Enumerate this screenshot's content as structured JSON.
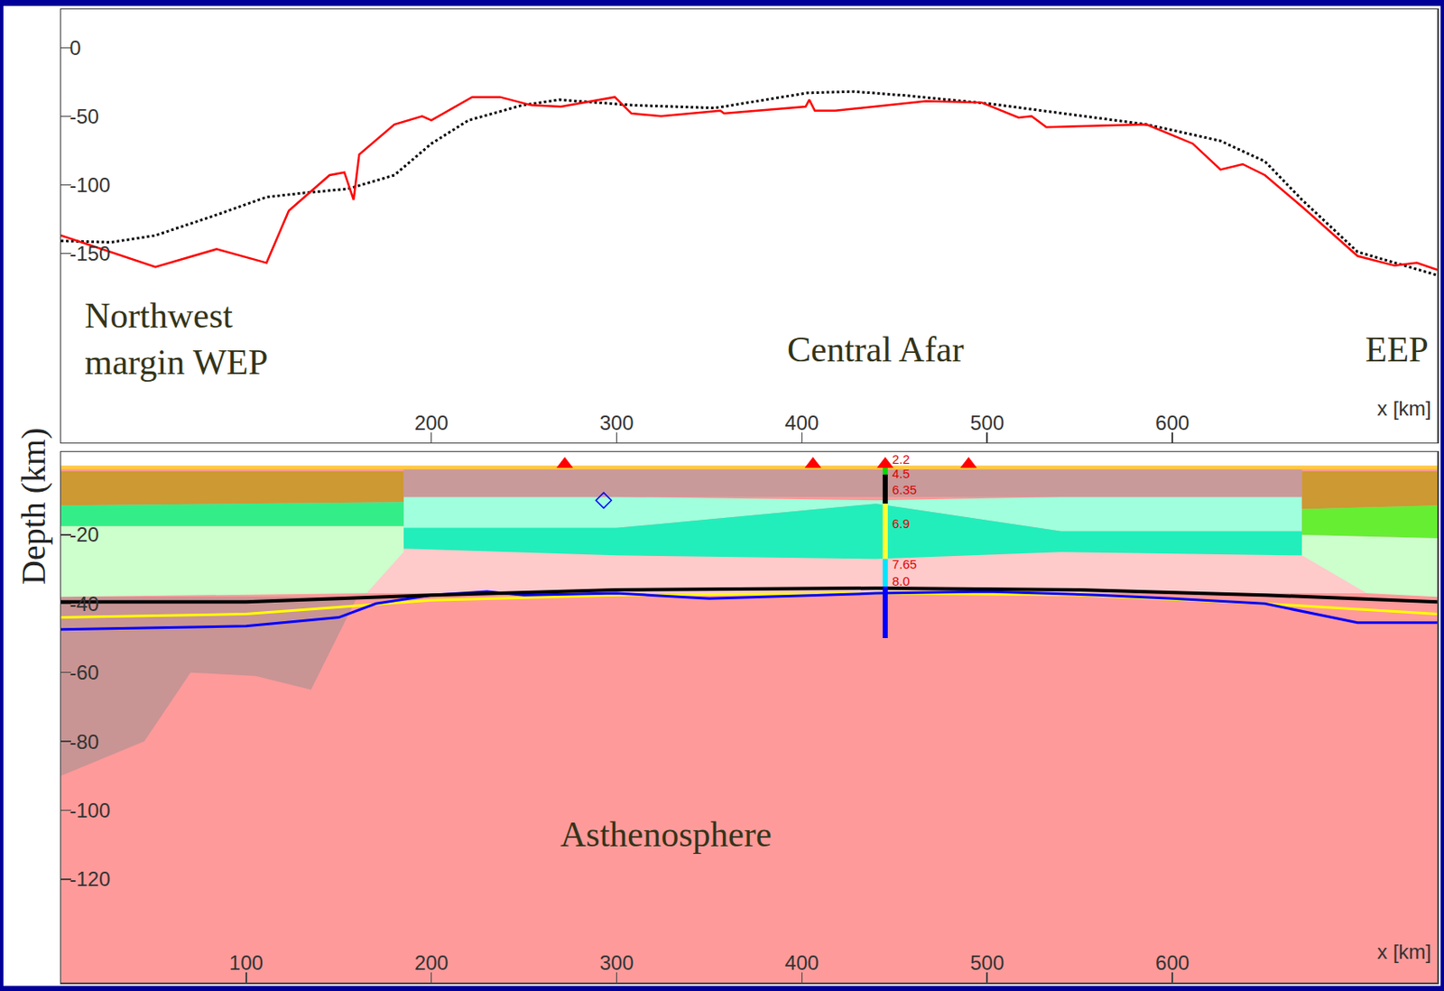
{
  "chart_data": [
    {
      "type": "line",
      "xlabel": "x [km]",
      "xlim": [
        0,
        743
      ],
      "xticks": [
        200,
        300,
        400,
        500,
        600
      ],
      "ylim": [
        -288,
        28
      ],
      "yticks": [
        0,
        -50,
        -100,
        -150
      ],
      "grid": false,
      "annotations": [
        "Northwest margin WEP",
        "Central Afar",
        "EEP"
      ],
      "series": [
        {
          "color": "#000000",
          "line_style": "dotted",
          "x": [
            0,
            27,
            51,
            84,
            111,
            131,
            155,
            180,
            200,
            220,
            249,
            269,
            309,
            353,
            403,
            428,
            457,
            502,
            586,
            626,
            650,
            670,
            700,
            725,
            743
          ],
          "values": [
            -141,
            -142,
            -137,
            -122,
            -109,
            -106,
            -103,
            -93,
            -70,
            -53,
            -42,
            -38,
            -42,
            -44,
            -33,
            -32,
            -35,
            -41,
            -56,
            -68,
            -83,
            -111,
            -149,
            -159,
            -166
          ]
        },
        {
          "color": "#ff0000",
          "line_style": "solid",
          "x": [
            0,
            51,
            84,
            111,
            123,
            145,
            153,
            158,
            161,
            180,
            195,
            200,
            222,
            237,
            254,
            270,
            299,
            308,
            324,
            356,
            358,
            402,
            404,
            407,
            418,
            462,
            467,
            497,
            517,
            524,
            532,
            586,
            611,
            626,
            638,
            650,
            670,
            700,
            720,
            732,
            743
          ],
          "values": [
            -137,
            -160,
            -147,
            -157,
            -119,
            -93,
            -91,
            -111,
            -78,
            -56,
            -50,
            -53,
            -36,
            -36,
            -42,
            -43,
            -36,
            -48,
            -50,
            -46,
            -48,
            -43,
            -38,
            -46,
            -46,
            -40,
            -39,
            -40,
            -51,
            -50,
            -58,
            -56,
            -70,
            -89,
            -85,
            -93,
            -116,
            -152,
            -159,
            -157,
            -162
          ]
        }
      ]
    },
    {
      "type": "area",
      "xlabel": "x [km]",
      "ylabel": "Depth (km)",
      "xlim": [
        0,
        743
      ],
      "xticks": [
        100,
        200,
        300,
        400,
        500,
        600
      ],
      "ylim": [
        -150,
        4
      ],
      "yticks": [
        -20,
        -40,
        -60,
        -80,
        -100,
        -120
      ],
      "grid": false,
      "annotations": [
        "Asthenosphere"
      ],
      "layers": [
        {
          "color": "#ff9a9a",
          "x": [
            0,
            743,
            743,
            0
          ],
          "y": [
            0,
            0,
            -150,
            -150
          ]
        },
        {
          "color": "#c99494",
          "x": [
            0,
            160,
            135,
            105,
            70,
            45,
            0
          ],
          "y": [
            -38,
            -38,
            -65,
            -61,
            -60,
            -80,
            -90
          ]
        },
        {
          "color": "#ffcaca",
          "x": [
            165,
            705,
            705,
            165
          ],
          "y": [
            -24,
            -24,
            -37,
            -37
          ]
        },
        {
          "color": "#a0ffdc",
          "x": [
            185,
            300,
            440,
            540,
            670,
            670,
            540,
            440,
            300,
            185
          ],
          "y": [
            -9,
            -9,
            -10,
            -9,
            -9,
            -19,
            -19,
            -11,
            -18,
            -18
          ]
        },
        {
          "color": "#22eebb",
          "x": [
            185,
            300,
            440,
            540,
            670,
            670,
            540,
            440,
            300,
            185
          ],
          "y": [
            -18,
            -18,
            -11,
            -19,
            -19,
            -26,
            -25,
            -27,
            -26,
            -24
          ]
        },
        {
          "color": "#c99a9a",
          "x": [
            185,
            670,
            670,
            185
          ],
          "y": [
            -1,
            -1,
            -9,
            -9
          ]
        },
        {
          "color": "#cc9933",
          "x": [
            0,
            185,
            185,
            0
          ],
          "y": [
            -1.5,
            -1.5,
            -10.5,
            -11.5
          ]
        },
        {
          "color": "#33ee88",
          "x": [
            0,
            185,
            185,
            0
          ],
          "y": [
            -11.5,
            -10.5,
            -17.5,
            -17.5
          ]
        },
        {
          "color": "#ccffcc",
          "x": [
            0,
            185,
            185,
            165,
            0
          ],
          "y": [
            -17.5,
            -17.5,
            -25,
            -37,
            -38
          ]
        },
        {
          "color": "#cc9933",
          "x": [
            670,
            743,
            743,
            670
          ],
          "y": [
            -1.5,
            -1.5,
            -11.5,
            -12.5
          ]
        },
        {
          "color": "#66ee33",
          "x": [
            670,
            743,
            743,
            670
          ],
          "y": [
            -12.5,
            -11.5,
            -21,
            -20
          ]
        },
        {
          "color": "#ccffcc",
          "x": [
            670,
            743,
            743,
            705,
            670
          ],
          "y": [
            -20,
            -21,
            -38,
            -37,
            -26
          ]
        },
        {
          "color": "#ffcc33",
          "x": [
            0,
            743,
            743,
            0
          ],
          "y": [
            0,
            0,
            -1,
            -1
          ]
        }
      ],
      "boundaries": [
        {
          "color": "#ffff00",
          "x": [
            0,
            100,
            200,
            300,
            440,
            550,
            650,
            743
          ],
          "values": [
            -44,
            -43,
            -39,
            -37.5,
            -37,
            -37.5,
            -40,
            -43
          ]
        },
        {
          "color": "#0000ff",
          "x": [
            0,
            50,
            100,
            150,
            170,
            200,
            230,
            250,
            300,
            350,
            440,
            500,
            560,
            600,
            650,
            700,
            743
          ],
          "values": [
            -47.5,
            -47,
            -46.5,
            -44,
            -40,
            -37.5,
            -36.5,
            -37.5,
            -37,
            -38.5,
            -37,
            -36.5,
            -37.5,
            -38.5,
            -40,
            -45.5,
            -45.5
          ]
        },
        {
          "color": "#000000",
          "x": [
            0,
            100,
            200,
            300,
            440,
            550,
            650,
            743
          ],
          "values": [
            -39.5,
            -39.5,
            -37.5,
            -36,
            -35.5,
            -36,
            -37.5,
            -39.5
          ]
        }
      ],
      "stations": {
        "color": "#ff0000",
        "marker": "triangle-up",
        "x": [
          272,
          406,
          445,
          490
        ],
        "values": [
          0.5,
          0.5,
          0.5,
          0.5
        ]
      },
      "points": {
        "color": "#0000ff",
        "marker": "diamond-open",
        "x": [
          293
        ],
        "values": [
          -10
        ]
      },
      "borehole": {
        "x": 445,
        "segments": [
          {
            "color": "#00dd00",
            "top": 0,
            "bottom": -2.5
          },
          {
            "color": "#000000",
            "top": -2.5,
            "bottom": -11
          },
          {
            "color": "#ffff33",
            "top": -11,
            "bottom": -27
          },
          {
            "color": "#00e5ff",
            "top": -27,
            "bottom": -35
          },
          {
            "color": "#0000ff",
            "top": -35,
            "bottom": -50
          }
        ],
        "labels": [
          {
            "value": 2.2,
            "depth": 2
          },
          {
            "value": 4.5,
            "depth": -2.2
          },
          {
            "value": 6.35,
            "depth": -6.8
          },
          {
            "value": 6.9,
            "depth": -16.8
          },
          {
            "value": 7.65,
            "depth": -28.4
          },
          {
            "value": 8.0,
            "label": "8.0",
            "depth": -33.5
          }
        ]
      }
    }
  ]
}
